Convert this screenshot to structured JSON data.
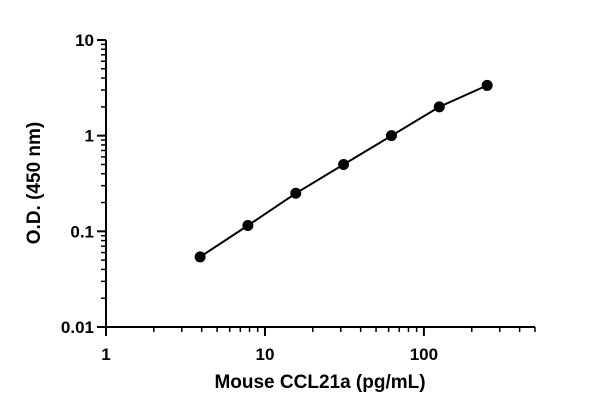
{
  "chart_data": {
    "type": "scatter",
    "title": "",
    "xlabel": "Mouse CCL21a (pg/mL)",
    "ylabel": "O.D. (450 nm)",
    "xscale": "log",
    "yscale": "log",
    "xlim": [
      1,
      500
    ],
    "ylim": [
      0.01,
      10
    ],
    "x_ticks": [
      "1",
      "10",
      "100"
    ],
    "y_ticks": [
      "0.01",
      "0.1",
      "1",
      "10"
    ],
    "grid": false,
    "legend": "none",
    "fit_line": true,
    "colors": {
      "points": "#000000",
      "line": "#000000",
      "axes": "#000000"
    },
    "series": [
      {
        "x": [
          3.91,
          7.81,
          15.63,
          31.25,
          62.5,
          125,
          250
        ],
        "y": [
          0.054,
          0.115,
          0.25,
          0.5,
          1.0,
          2.0,
          3.35
        ]
      }
    ]
  }
}
